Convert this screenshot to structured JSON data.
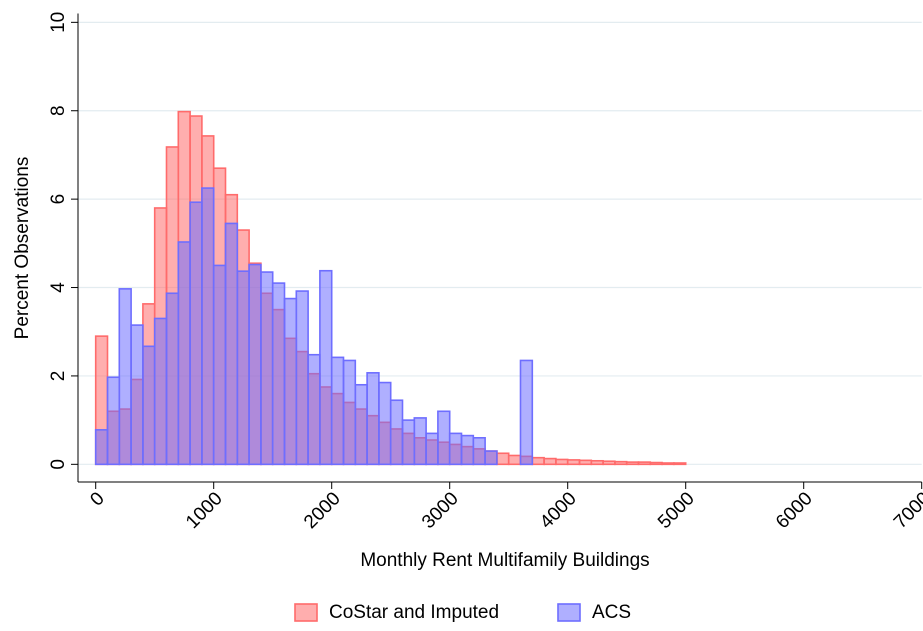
{
  "chart_data": {
    "type": "histogram",
    "xlabel": "Monthly Rent Multifamily Buildings",
    "ylabel": "Percent Observations",
    "xlim": [
      -150,
      7000
    ],
    "xticks": [
      0,
      1000,
      2000,
      3000,
      4000,
      5000,
      6000,
      7000
    ],
    "ylim": [
      -0.4,
      10.2
    ],
    "yticks": [
      0,
      2,
      4,
      6,
      8,
      10
    ],
    "grid": true,
    "legend": "bottom",
    "series": [
      {
        "name": "CoStar and Imputed",
        "color": "#ff6b6b",
        "bins": [
          0,
          100,
          200,
          300,
          400,
          500,
          600,
          700,
          800,
          900,
          1000,
          1100,
          1200,
          1300,
          1400,
          1500,
          1600,
          1700,
          1800,
          1900,
          2000,
          2100,
          2200,
          2300,
          2400,
          2500,
          2600,
          2700,
          2800,
          2900,
          3000,
          3100,
          3200,
          3300,
          3400,
          3500,
          3600,
          3700,
          3800,
          3900,
          4000,
          4100,
          4200,
          4300,
          4400,
          4500,
          4600,
          4700,
          4800,
          4900,
          5000
        ],
        "values": [
          2.9,
          1.2,
          1.25,
          1.92,
          3.63,
          5.8,
          7.18,
          7.98,
          7.88,
          7.43,
          6.7,
          6.1,
          5.3,
          4.55,
          3.87,
          3.5,
          2.85,
          2.55,
          2.05,
          1.75,
          1.6,
          1.4,
          1.25,
          1.1,
          0.95,
          0.8,
          0.7,
          0.6,
          0.55,
          0.5,
          0.45,
          0.4,
          0.35,
          0.3,
          0.25,
          0.2,
          0.18,
          0.15,
          0.13,
          0.11,
          0.1,
          0.09,
          0.08,
          0.07,
          0.06,
          0.05,
          0.05,
          0.04,
          0.03,
          0.03
        ]
      },
      {
        "name": "ACS",
        "color": "#6e6eff",
        "bins": [
          0,
          100,
          200,
          300,
          400,
          500,
          600,
          700,
          800,
          900,
          1000,
          1100,
          1200,
          1300,
          1400,
          1500,
          1600,
          1700,
          1800,
          1900,
          2000,
          2100,
          2200,
          2300,
          2400,
          2500,
          2600,
          2700,
          2800,
          2900,
          3000,
          3100,
          3200,
          3300,
          3400,
          3500,
          3600,
          3700
        ],
        "values": [
          0.78,
          1.97,
          3.97,
          3.15,
          2.67,
          3.3,
          3.87,
          5.03,
          5.93,
          6.25,
          4.5,
          5.45,
          4.37,
          4.52,
          4.35,
          4.1,
          3.75,
          3.92,
          2.48,
          4.38,
          2.42,
          2.35,
          1.8,
          2.07,
          1.85,
          1.45,
          1.0,
          1.05,
          0.7,
          1.2,
          0.7,
          0.65,
          0.6,
          0.3,
          0,
          0,
          2.35
        ]
      }
    ]
  }
}
